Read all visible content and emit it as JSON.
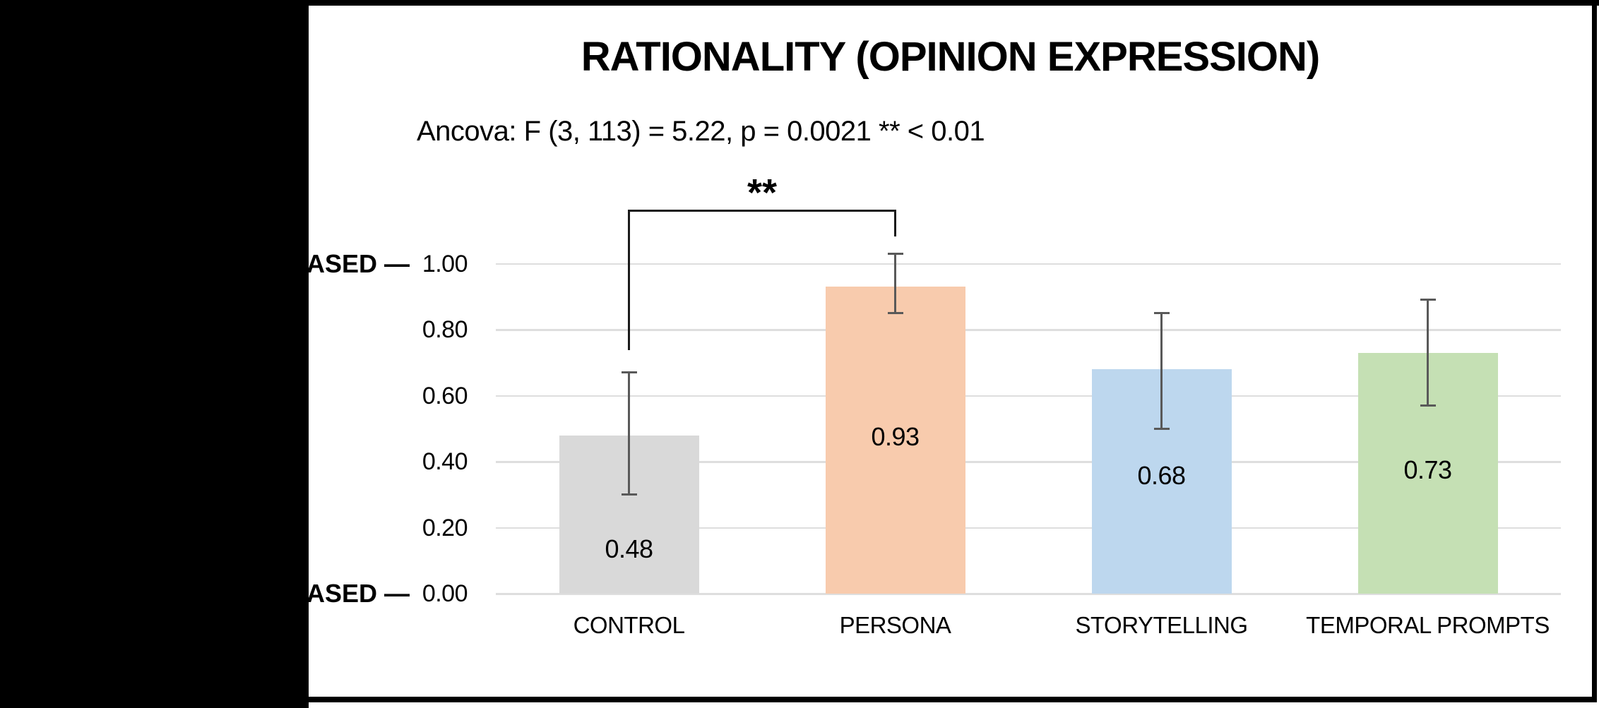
{
  "header": {
    "title": "RATIONALITY (OPINION EXPRESSION)",
    "subtitle": "Ancova: F (3, 113) = 5.22, p = 0.0021 ** < 0.01"
  },
  "y_axis_annotations": {
    "top_label": "ASED —",
    "bottom_label": "ASED —"
  },
  "colors": {
    "background": "#ffffff",
    "frame_border": "#000000",
    "left_mask": "#000000",
    "gridline": "#DEDEDE",
    "error_bar": "#595959",
    "bracket": "#1a1a1a",
    "text": "#000000"
  },
  "chart_data": {
    "type": "bar",
    "title": "RATIONALITY (OPINION EXPRESSION)",
    "annotation": "Ancova: F (3, 113) = 5.22, p = 0.0021 ** < 0.01",
    "categories": [
      "CONTROL",
      "PERSONA",
      "STORYTELLING",
      "TEMPORAL PROMPTS"
    ],
    "values": [
      0.48,
      0.93,
      0.68,
      0.73
    ],
    "value_labels": [
      "0.48",
      "0.93",
      "0.68",
      "0.73"
    ],
    "bar_colors": [
      "#D9D9D9",
      "#F8CBAD",
      "#BDD7EE",
      "#C5E0B4"
    ],
    "error_low": [
      0.3,
      0.85,
      0.5,
      0.57
    ],
    "error_high": [
      0.67,
      1.03,
      0.85,
      0.89
    ],
    "value_label_positions": [
      0.135,
      0.475,
      0.357,
      0.374
    ],
    "yticks": [
      {
        "label": "1.00",
        "value": 1.0
      },
      {
        "label": "0.80",
        "value": 0.8
      },
      {
        "label": "0.60",
        "value": 0.6
      },
      {
        "label": "0.40",
        "value": 0.4
      },
      {
        "label": "0.20",
        "value": 0.2
      },
      {
        "label": "0.00",
        "value": 0.0
      }
    ],
    "ylim": [
      0.0,
      1.0
    ],
    "grid": true,
    "legend": "none",
    "significance": {
      "stars": "**",
      "from_category": "CONTROL",
      "to_category": "PERSONA",
      "bracket_value": 1.16,
      "left_drop_to_value": 0.735,
      "right_drop_to_value": 1.08
    }
  }
}
